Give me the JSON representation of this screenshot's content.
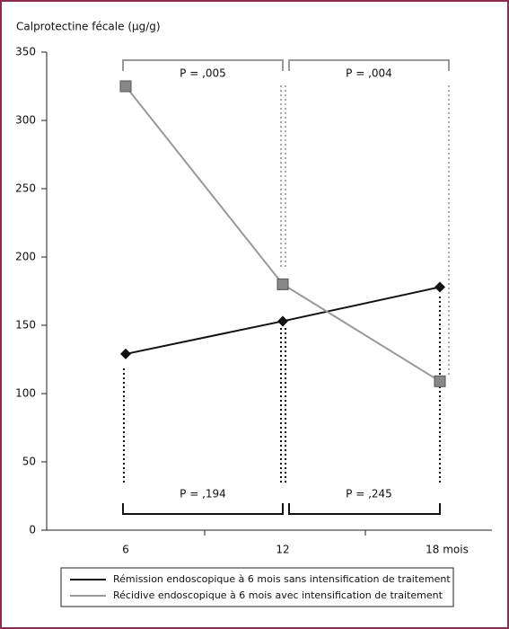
{
  "chart_data": {
    "type": "line",
    "y_label": "Calprotectine fécale (µg/g)",
    "categories": [
      "6",
      "12",
      "18 mois"
    ],
    "series": [
      {
        "name": "Rémission endoscopique à 6 mois sans intensification de traitement",
        "color": "#111111",
        "marker": "diamond",
        "values": [
          129,
          153,
          178
        ]
      },
      {
        "name": "Récidive endoscopique à 6 mois avec intensification de traitement",
        "color": "#999999",
        "marker": "square",
        "values": [
          325,
          180,
          109
        ]
      }
    ],
    "ylim": [
      0,
      350
    ],
    "yticks": [
      0,
      50,
      100,
      150,
      200,
      250,
      300,
      350
    ],
    "annotations": [
      "P = ,005",
      "P = ,004",
      "P = ,194",
      "P = ,245"
    ]
  }
}
